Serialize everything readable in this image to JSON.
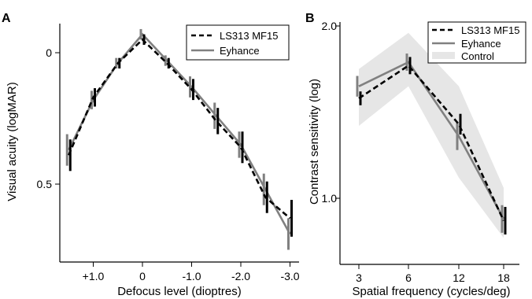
{
  "chart_data": [
    {
      "panel_label": "A",
      "type": "line",
      "xlabel": "Defocus level (dioptres)",
      "ylabel": "Visual acuity  (logMAR)",
      "x": [
        1.5,
        1.0,
        0.5,
        0.0,
        -0.5,
        -1.0,
        -1.5,
        -2.0,
        -2.5,
        -3.0
      ],
      "x_tick_values": [
        1.0,
        0.0,
        -1.0,
        -2.0,
        -3.0
      ],
      "x_tick_labels": [
        "+1.0",
        "0",
        "-1.0",
        "-2.0",
        "-3.0"
      ],
      "xlim": [
        1.7,
        -3.2
      ],
      "y_tick_values": [
        0,
        0.5
      ],
      "y_tick_labels": [
        "0",
        "0.5"
      ],
      "ylim": [
        0.8,
        -0.1
      ],
      "y_inverted": true,
      "legend_position": "top-right",
      "series": [
        {
          "name": "LS313 MF15",
          "style": "dashed",
          "color": "#000000",
          "values": [
            0.39,
            0.17,
            0.04,
            -0.05,
            0.04,
            0.14,
            0.26,
            0.36,
            0.55,
            0.63
          ],
          "errors": [
            0.06,
            0.035,
            0.02,
            0.02,
            0.02,
            0.04,
            0.05,
            0.06,
            0.06,
            0.07
          ]
        },
        {
          "name": "Eyhance",
          "style": "solid",
          "color": "#808080",
          "values": [
            0.37,
            0.18,
            0.04,
            -0.07,
            0.03,
            0.13,
            0.24,
            0.35,
            0.52,
            0.69
          ],
          "errors": [
            0.06,
            0.035,
            0.02,
            0.02,
            0.02,
            0.04,
            0.05,
            0.05,
            0.06,
            0.06
          ]
        }
      ]
    },
    {
      "panel_label": "B",
      "type": "line",
      "xlabel": "Spatial frequency (cycles/deg)",
      "ylabel": "Contrast sensitivity (log)",
      "categories": [
        "3",
        "6",
        "12",
        "18"
      ],
      "y_tick_values": [
        1.0,
        2.0
      ],
      "y_tick_labels": [
        "1.0",
        "2.0"
      ],
      "ylim": [
        0.75,
        2.05
      ],
      "legend_position": "top-right",
      "series": [
        {
          "name": "LS313 MF15",
          "style": "dashed",
          "color": "#000000",
          "values": [
            1.58,
            1.77,
            1.43,
            0.87
          ],
          "errors": [
            0.04,
            0.05,
            0.06,
            0.08
          ]
        },
        {
          "name": "Eyhance",
          "style": "solid",
          "color": "#808080",
          "values": [
            1.65,
            1.79,
            1.36,
            0.88
          ],
          "errors": [
            0.06,
            0.05,
            0.08,
            0.08
          ]
        },
        {
          "name": "Control",
          "style": "band",
          "color": "#e6e6e6",
          "lower": [
            1.42,
            1.65,
            1.12,
            0.77
          ],
          "upper": [
            1.75,
            1.96,
            1.65,
            1.06
          ]
        }
      ]
    }
  ]
}
